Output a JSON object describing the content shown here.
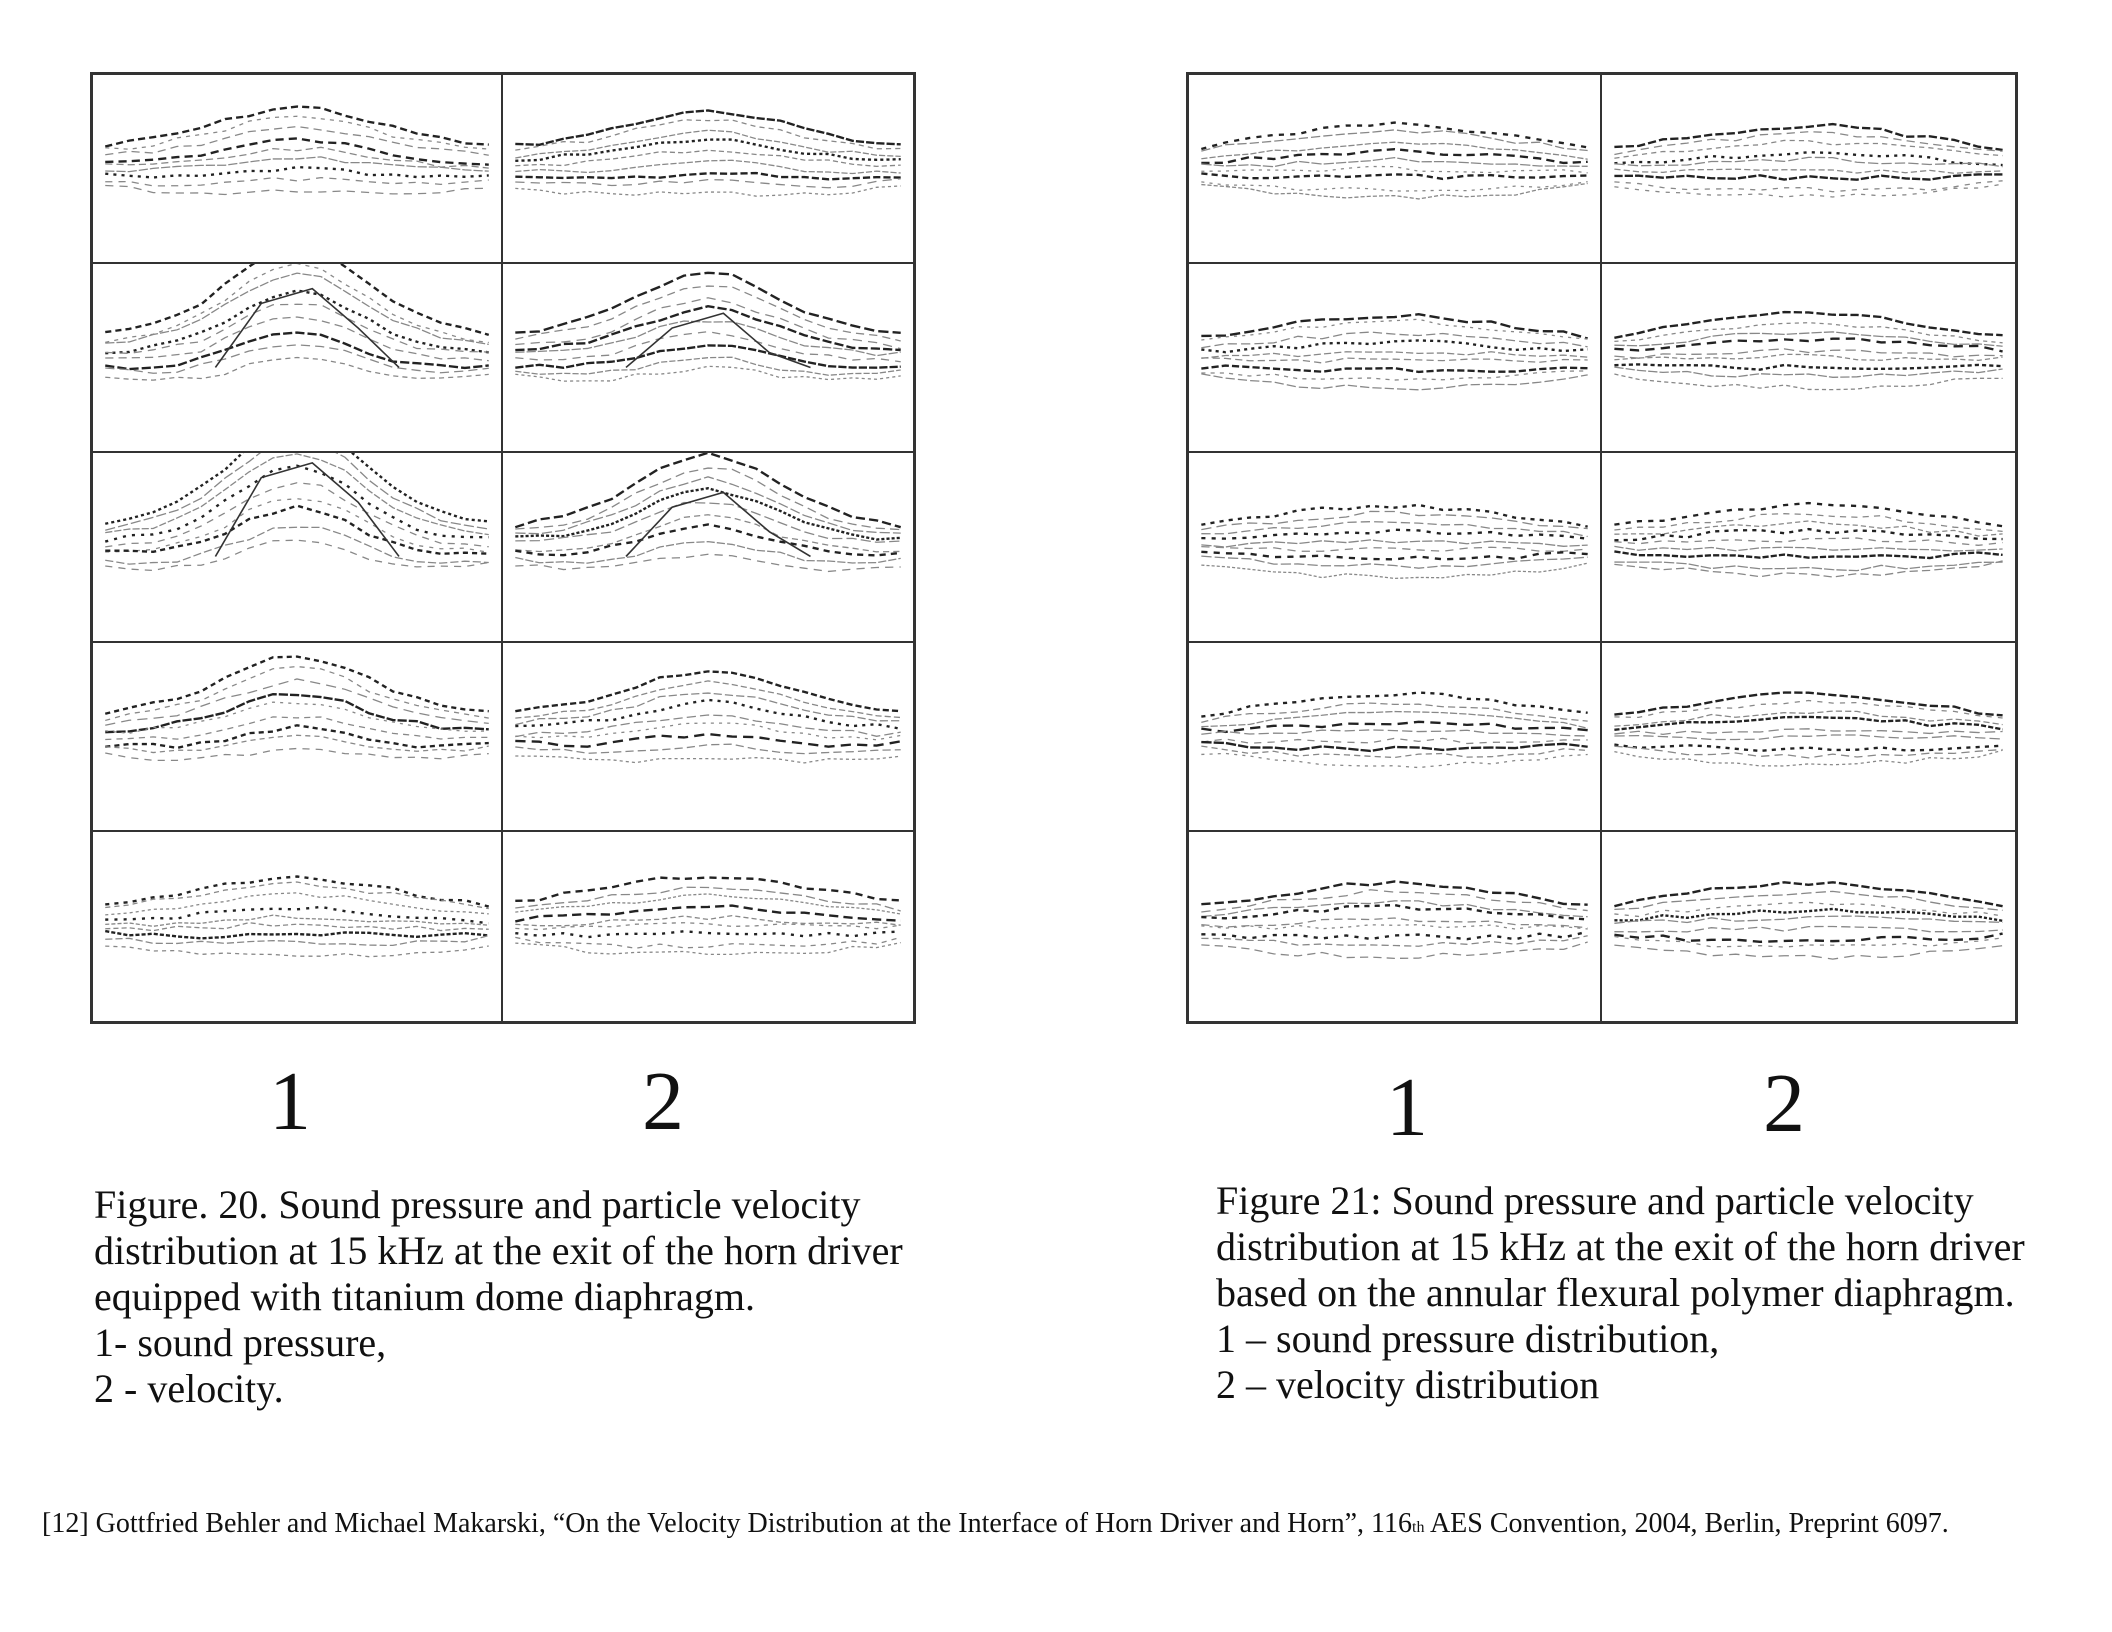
{
  "figures": [
    {
      "column_labels": [
        "1",
        "2"
      ],
      "caption_lines": [
        "Figure. 20. Sound pressure and particle velocity",
        "distribution at 15 kHz at the exit of the horn driver",
        "equipped with titanium dome diaphragm.",
        "1- sound pressure,",
        "2 - velocity."
      ]
    },
    {
      "column_labels": [
        "1",
        "2"
      ],
      "caption_lines": [
        "Figure 21: Sound pressure and particle velocity",
        "distribution at 15 kHz at the exit of the horn driver",
        "based on the annular flexural polymer diaphragm.",
        "1 – sound pressure distribution,",
        "2 – velocity distribution"
      ]
    }
  ],
  "reference": {
    "before": "[12] Gottfried Behler and Michael Makarski, “On the Velocity Distribution at the Interface of Horn Driver and Horn”, 116",
    "superscript": "th",
    "after": " AES Convention, 2004, Berlin, Preprint 6097."
  }
}
